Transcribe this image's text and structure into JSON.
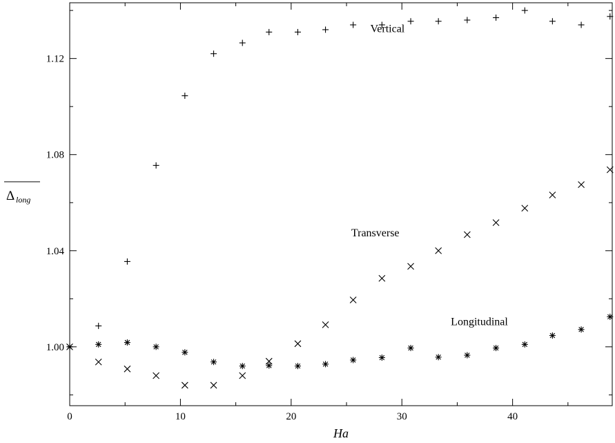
{
  "chart_data": {
    "type": "scatter",
    "title": "",
    "xlabel": "Ha",
    "ylabel": "Δ",
    "ylabel_subscript": "long",
    "xlim": [
      0,
      49
    ],
    "ylim": [
      0.9755,
      1.1432
    ],
    "grid": false,
    "x_ticks": [
      0,
      10,
      20,
      30,
      40
    ],
    "x_tick_labels": [
      "0",
      "10",
      "20",
      "30",
      "40"
    ],
    "y_ticks": [
      1.0,
      1.04,
      1.08,
      1.12
    ],
    "y_tick_labels": [
      "1.00",
      "1.04",
      "1.08",
      "1.12"
    ],
    "series": [
      {
        "name": "Vertical",
        "marker": "plus",
        "x": [
          0,
          2.6,
          5.2,
          7.8,
          10.4,
          13.0,
          15.6,
          18.0,
          20.6,
          23.1,
          25.6,
          28.2,
          30.8,
          33.3,
          35.9,
          38.5,
          41.1,
          43.6,
          46.2,
          48.8
        ],
        "y": [
          1.0,
          1.0087,
          1.0355,
          1.0755,
          1.1045,
          1.122,
          1.1265,
          1.131,
          1.131,
          1.132,
          1.134,
          1.134,
          1.1355,
          1.1355,
          1.136,
          1.137,
          1.14,
          1.1355,
          1.134,
          1.1375
        ]
      },
      {
        "name": "Transverse",
        "marker": "cross",
        "x": [
          0,
          2.6,
          5.2,
          7.8,
          10.4,
          13.0,
          15.6,
          18.0,
          20.6,
          23.1,
          25.6,
          28.2,
          30.8,
          33.3,
          35.9,
          38.5,
          41.1,
          43.6,
          46.2,
          48.8
        ],
        "y": [
          1.0,
          0.9937,
          0.9908,
          0.988,
          0.984,
          0.984,
          0.988,
          0.994,
          1.0013,
          1.0092,
          1.0195,
          1.0285,
          1.0335,
          1.04,
          1.0467,
          1.0517,
          1.0577,
          1.0632,
          1.0675,
          1.0737
        ]
      },
      {
        "name": "Longitudinal",
        "marker": "asterisk",
        "x": [
          0,
          2.6,
          5.2,
          7.8,
          10.4,
          13.0,
          15.6,
          18.0,
          20.6,
          23.1,
          25.6,
          28.2,
          30.8,
          33.3,
          35.9,
          38.5,
          41.1,
          43.6,
          46.2,
          48.8
        ],
        "y": [
          1.0,
          1.001,
          1.0018,
          1.0,
          0.9977,
          0.9937,
          0.992,
          0.9922,
          0.992,
          0.9928,
          0.9945,
          0.9955,
          0.9995,
          0.9957,
          0.9965,
          0.9995,
          1.001,
          1.0047,
          1.0072,
          1.0125
        ]
      }
    ],
    "annotations": [
      {
        "text": "Vertical",
        "x": 28.7,
        "y": 1.131
      },
      {
        "text": "Transverse",
        "x": 27.6,
        "y": 1.046
      },
      {
        "text": "Longitudinal",
        "x": 37.0,
        "y": 1.009
      }
    ]
  }
}
